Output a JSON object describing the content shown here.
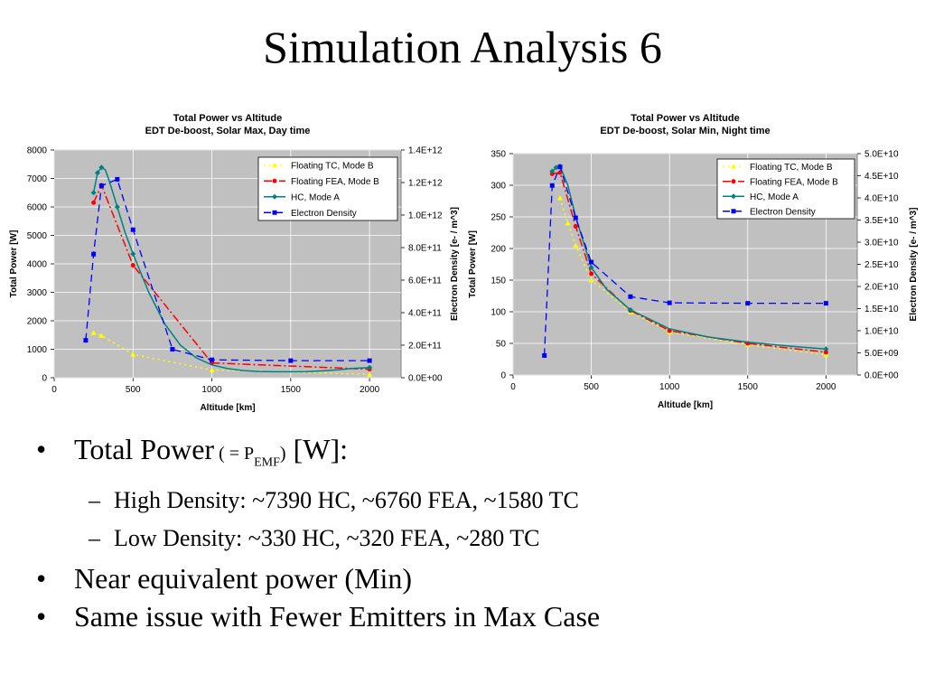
{
  "slide": {
    "title": "Simulation Analysis 6"
  },
  "bullets": {
    "b1_text": "Total Power",
    "b1_paren_open": " ( = P",
    "b1_subscript": "EMF",
    "b1_paren_close": ")",
    "b1_unit": " [W]:",
    "sub1": "High Density: ~7390 HC, ~6760 FEA, ~1580 TC",
    "sub2": "Low Density: ~330 HC, ~320  FEA, ~280 TC",
    "b2": "Near equivalent power (Min)",
    "b3": "Same issue with Fewer Emitters in Max Case",
    "bullet_char": "•",
    "dash_char": "–"
  },
  "chart_data": [
    {
      "type": "line",
      "title": "Total Power vs Altitude",
      "subtitle": "EDT De-boost, Solar Max, Day time",
      "xlabel": "Altitude [km]",
      "ylabel": "Total Power [W]",
      "y2label": "Electron Density [e- / m^3]",
      "xlim": [
        0,
        2200
      ],
      "ylim": [
        0,
        8000
      ],
      "y2lim": [
        0,
        1400000000000.0
      ],
      "xticks": [
        0,
        500,
        1000,
        1500,
        2000
      ],
      "xtick_labels": [
        "0",
        "500",
        "1000",
        "1500",
        "2000"
      ],
      "yticks": [
        0,
        1000,
        2000,
        3000,
        4000,
        5000,
        6000,
        7000,
        8000
      ],
      "ytick_labels": [
        "0",
        "1000",
        "2000",
        "3000",
        "4000",
        "5000",
        "6000",
        "7000",
        "8000"
      ],
      "y2ticks": [
        0,
        200000000000.0,
        400000000000.0,
        600000000000.0,
        800000000000.0,
        1000000000000.0,
        1200000000000.0,
        1400000000000.0
      ],
      "y2tick_labels": [
        "0.0E+00",
        "2.0E+11",
        "4.0E+11",
        "6.0E+11",
        "8.0E+11",
        "1.0E+12",
        "1.2E+12",
        "1.4E+12"
      ],
      "grid": true,
      "legend": "top-right",
      "series": [
        {
          "name": "Floating TC, Mode B",
          "color": "#ffff00",
          "marker": "triangle",
          "dash": "2,4",
          "axis": "left",
          "x": [
            250,
            300,
            500,
            1000,
            2000
          ],
          "y": [
            1580,
            1480,
            820,
            270,
            120
          ]
        },
        {
          "name": "Floating FEA, Mode B",
          "color": "#ff0000",
          "marker": "circle",
          "dash": "9,3,2,3",
          "axis": "left",
          "x": [
            250,
            300,
            500,
            1000,
            2000
          ],
          "y": [
            6150,
            6760,
            3950,
            520,
            300
          ]
        },
        {
          "name": "HC, Mode A",
          "color": "#008080",
          "marker": "diamond",
          "dash": "",
          "axis": "left",
          "x": [
            250,
            275,
            300,
            325,
            350,
            400,
            450,
            500,
            600,
            700,
            800,
            900,
            1000,
            1100,
            1200,
            1300,
            1400,
            1500,
            1600,
            1700,
            1800,
            1900,
            2000
          ],
          "y": [
            6500,
            7200,
            7390,
            7300,
            6900,
            6000,
            5100,
            4350,
            3000,
            1900,
            1150,
            700,
            450,
            320,
            250,
            220,
            210,
            210,
            215,
            240,
            280,
            330,
            360
          ]
        },
        {
          "name": "Electron Density",
          "color": "#0000ff",
          "marker": "square",
          "dash": "8,5",
          "axis": "right",
          "x": [
            200,
            250,
            300,
            400,
            500,
            750,
            1000,
            1500,
            2000
          ],
          "y": [
            230000000000.0,
            760000000000.0,
            1180000000000.0,
            1220000000000.0,
            910000000000.0,
            175000000000.0,
            110000000000.0,
            105000000000.0,
            105000000000.0
          ]
        }
      ]
    },
    {
      "type": "line",
      "title": "Total Power vs Altitude",
      "subtitle": "EDT De-boost, Solar Min, Night time",
      "xlabel": "Altitude [km]",
      "ylabel": "Total Power [W]",
      "y2label": "Electron Density [e- / m^3]",
      "xlim": [
        0,
        2200
      ],
      "ylim": [
        0,
        350
      ],
      "y2lim": [
        0,
        50000000000.0
      ],
      "xticks": [
        0,
        500,
        1000,
        1500,
        2000
      ],
      "xtick_labels": [
        "0",
        "500",
        "1000",
        "1500",
        "2000"
      ],
      "yticks": [
        0,
        50,
        100,
        150,
        200,
        250,
        300,
        350
      ],
      "ytick_labels": [
        "0",
        "50",
        "100",
        "150",
        "200",
        "250",
        "300",
        "350"
      ],
      "y2ticks": [
        0,
        5000000000.0,
        10000000000.0,
        15000000000.0,
        20000000000.0,
        25000000000.0,
        30000000000.0,
        35000000000.0,
        40000000000.0,
        45000000000.0,
        50000000000.0
      ],
      "y2tick_labels": [
        "0.0E+00",
        "5.0E+09",
        "1.0E+10",
        "1.5E+10",
        "2.0E+10",
        "2.5E+10",
        "3.0E+10",
        "3.5E+10",
        "4.0E+10",
        "4.5E+10",
        "5.0E+10"
      ],
      "grid": true,
      "legend": "top-right",
      "series": [
        {
          "name": "Floating TC, Mode B",
          "color": "#ffff00",
          "marker": "triangle",
          "dash": "2,4",
          "axis": "left",
          "x": [
            300,
            350,
            400,
            500,
            750,
            1000,
            1500,
            2000
          ],
          "y": [
            280,
            240,
            205,
            150,
            100,
            68,
            48,
            32
          ]
        },
        {
          "name": "Floating FEA, Mode B",
          "color": "#ff0000",
          "marker": "circle",
          "dash": "9,3,2,3",
          "axis": "left",
          "x": [
            250,
            300,
            400,
            500,
            750,
            1000,
            1500,
            2000
          ],
          "y": [
            318,
            320,
            235,
            160,
            102,
            70,
            50,
            36
          ]
        },
        {
          "name": "HC, Mode A",
          "color": "#008080",
          "marker": "diamond",
          "dash": "",
          "axis": "left",
          "x": [
            250,
            275,
            300,
            350,
            400,
            500,
            600,
            750,
            1000,
            1250,
            1500,
            1750,
            2000
          ],
          "y": [
            322,
            328,
            330,
            300,
            250,
            170,
            135,
            103,
            73,
            60,
            52,
            46,
            41
          ]
        },
        {
          "name": "Electron Density",
          "color": "#0000ff",
          "marker": "square",
          "dash": "8,5",
          "axis": "right",
          "x": [
            200,
            250,
            300,
            400,
            500,
            750,
            1000,
            1500,
            2000
          ],
          "y": [
            4400000000.0,
            42800000000.0,
            47000000000.0,
            35500000000.0,
            25500000000.0,
            17700000000.0,
            16300000000.0,
            16200000000.0,
            16200000000.0
          ]
        }
      ]
    }
  ]
}
